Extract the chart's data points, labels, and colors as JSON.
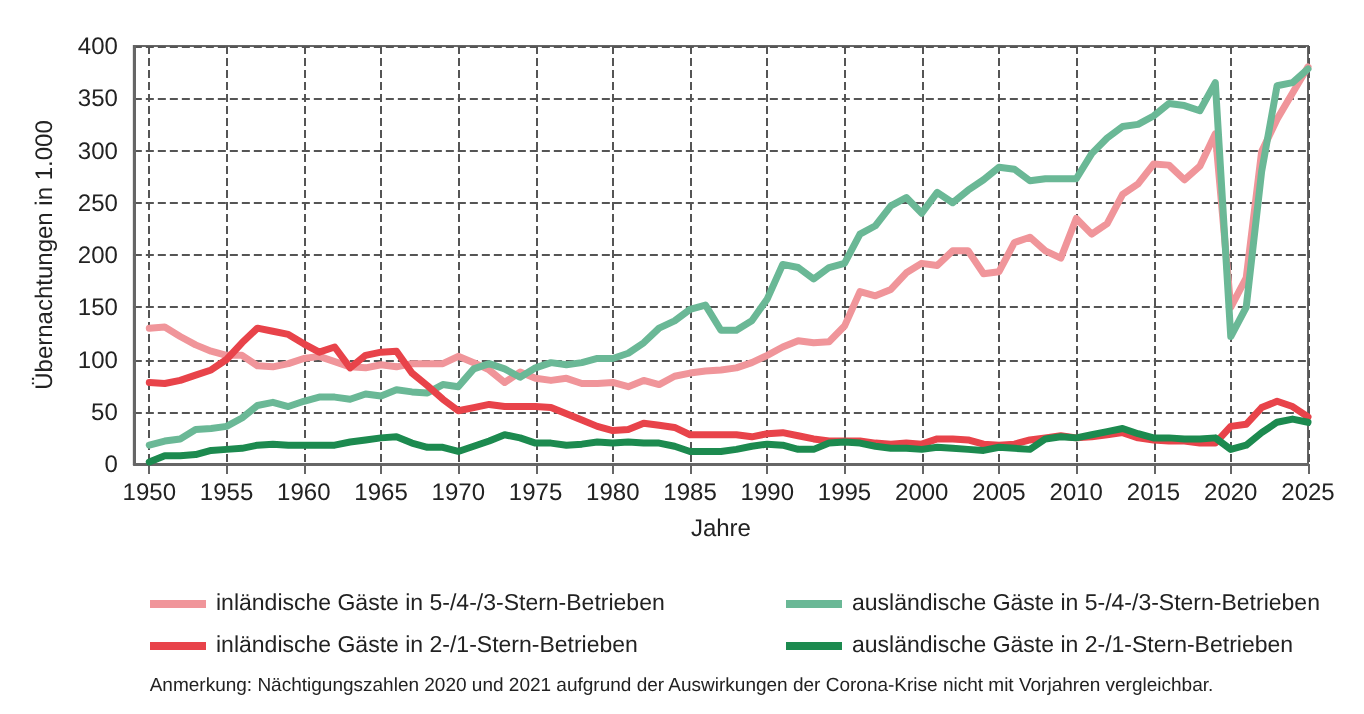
{
  "chart_data": {
    "type": "line",
    "xlabel": "Jahre",
    "ylabel": "Übernachtungen in 1.000",
    "x": [
      1950,
      1951,
      1952,
      1953,
      1954,
      1955,
      1956,
      1957,
      1958,
      1959,
      1960,
      1961,
      1962,
      1963,
      1964,
      1965,
      1966,
      1967,
      1968,
      1969,
      1970,
      1971,
      1972,
      1973,
      1974,
      1975,
      1976,
      1977,
      1978,
      1979,
      1980,
      1981,
      1982,
      1983,
      1984,
      1985,
      1986,
      1987,
      1988,
      1989,
      1990,
      1991,
      1992,
      1993,
      1994,
      1995,
      1996,
      1997,
      1998,
      1999,
      2000,
      2001,
      2002,
      2003,
      2004,
      2005,
      2006,
      2007,
      2008,
      2009,
      2010,
      2011,
      2012,
      2013,
      2014,
      2015,
      2016,
      2017,
      2018,
      2019,
      2020,
      2021,
      2022,
      2023,
      2024,
      2025
    ],
    "series": [
      {
        "name": "inländische Gäste in 5-/4-/3-Stern-Betrieben",
        "color": "#f0959a",
        "values": [
          130,
          131,
          122,
          114,
          108,
          104,
          104,
          94,
          93,
          96,
          101,
          103,
          98,
          93,
          92,
          95,
          93,
          96,
          96,
          96,
          103,
          97,
          90,
          78,
          88,
          82,
          80,
          82,
          77,
          77,
          78,
          74,
          80,
          76,
          84,
          87,
          89,
          90,
          92,
          97,
          104,
          112,
          118,
          116,
          117,
          132,
          165,
          161,
          167,
          183,
          192,
          190,
          204,
          204,
          182,
          184,
          212,
          217,
          204,
          197,
          235,
          220,
          230,
          258,
          268,
          287,
          286,
          272,
          285,
          316,
          150,
          178,
          299,
          330,
          355,
          380
        ]
      },
      {
        "name": "ausländische Gäste in 5-/4-/3-Stern-Betrieben",
        "color": "#6ab896",
        "values": [
          18,
          22,
          24,
          33,
          34,
          36,
          44,
          56,
          59,
          55,
          60,
          64,
          64,
          62,
          67,
          65,
          71,
          69,
          68,
          76,
          74,
          91,
          96,
          91,
          83,
          92,
          97,
          95,
          97,
          101,
          101,
          106,
          116,
          130,
          137,
          148,
          152,
          128,
          128,
          137,
          158,
          191,
          188,
          177,
          188,
          192,
          220,
          228,
          247,
          255,
          240,
          260,
          250,
          262,
          272,
          284,
          282,
          271,
          273,
          273,
          273,
          297,
          312,
          323,
          325,
          333,
          345,
          343,
          338,
          365,
          122,
          150,
          280,
          362,
          365,
          378
        ]
      },
      {
        "name": "inländische Gäste in 2-/1-Stern-Betrieben",
        "color": "#e8434a",
        "values": [
          78,
          77,
          80,
          85,
          90,
          100,
          116,
          130,
          127,
          124,
          115,
          107,
          112,
          92,
          104,
          107,
          108,
          87,
          75,
          62,
          51,
          54,
          57,
          55,
          55,
          55,
          54,
          48,
          42,
          36,
          32,
          33,
          39,
          37,
          35,
          28,
          28,
          28,
          28,
          26,
          29,
          30,
          27,
          24,
          22,
          22,
          22,
          20,
          19,
          20,
          19,
          24,
          24,
          23,
          19,
          18,
          19,
          23,
          25,
          27,
          25,
          26,
          28,
          30,
          25,
          23,
          22,
          22,
          20,
          20,
          36,
          38,
          54,
          60,
          55,
          45
        ]
      },
      {
        "name": "ausländische Gäste in 2-/1-Stern-Betrieben",
        "color": "#1c8a4f",
        "values": [
          2,
          8,
          8,
          9,
          13,
          14,
          15,
          18,
          19,
          18,
          18,
          18,
          18,
          21,
          23,
          25,
          26,
          20,
          16,
          16,
          12,
          17,
          22,
          28,
          25,
          20,
          20,
          18,
          19,
          21,
          20,
          21,
          20,
          20,
          17,
          12,
          12,
          12,
          14,
          17,
          19,
          18,
          14,
          14,
          20,
          21,
          20,
          17,
          15,
          15,
          14,
          16,
          15,
          14,
          13,
          16,
          15,
          14,
          24,
          26,
          25,
          28,
          31,
          34,
          29,
          25,
          25,
          24,
          24,
          25,
          14,
          18,
          30,
          40,
          43,
          40
        ]
      }
    ],
    "xlim": [
      1949,
      2025
    ],
    "xticks": [
      1950,
      1955,
      1960,
      1965,
      1970,
      1975,
      1980,
      1985,
      1990,
      1995,
      2000,
      2005,
      2010,
      2015,
      2020,
      2025
    ],
    "ylim": [
      0,
      400
    ],
    "yticks": [
      0,
      50,
      100,
      150,
      200,
      250,
      300,
      350,
      400
    ],
    "grid": true,
    "legend": "bottom",
    "marker": "none",
    "line_style": "solid",
    "annotations": [
      "Anmerkung: Nächtigungszahlen 2020 und 2021 aufgrund der Auswirkungen der Corona-Krise nicht mit Vorjahren vergleichbar."
    ]
  }
}
